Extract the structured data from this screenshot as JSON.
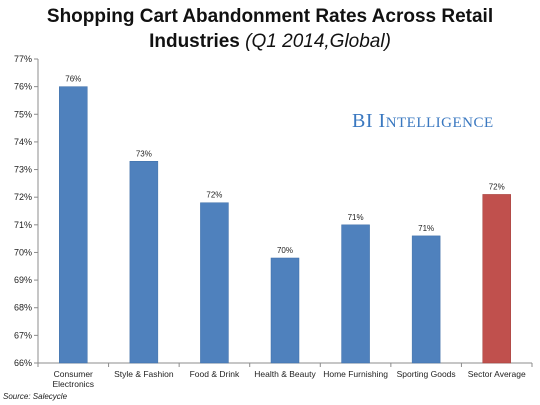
{
  "chart_data": {
    "type": "bar",
    "title": "Shopping Cart Abandonment Rates Across Retail Industries",
    "title_line1": "Shopping Cart Abandonment Rates Across Retail",
    "title_line2": "Industries",
    "subtitle": "(Q1 2014,Global)",
    "categories": [
      "Consumer Electronics",
      "Style & Fashion",
      "Food & Drink",
      "Health & Beauty",
      "Home Furnishing",
      "Sporting Goods",
      "Sector Average"
    ],
    "category_lines": [
      [
        "Consumer",
        "Electronics"
      ],
      [
        "Style & Fashion"
      ],
      [
        "Food & Drink"
      ],
      [
        "Health & Beauty"
      ],
      [
        "Home Furnishing"
      ],
      [
        "Sporting Goods"
      ],
      [
        "Sector Average"
      ]
    ],
    "values": [
      76.0,
      73.3,
      71.8,
      69.8,
      71.0,
      70.6,
      72.1
    ],
    "data_labels": [
      "76%",
      "73%",
      "72%",
      "70%",
      "71%",
      "71%",
      "72%"
    ],
    "colors": [
      "#4f81bd",
      "#4f81bd",
      "#4f81bd",
      "#4f81bd",
      "#4f81bd",
      "#4f81bd",
      "#c0504d"
    ],
    "ylim": [
      66,
      77
    ],
    "yticks": [
      66,
      67,
      68,
      69,
      70,
      71,
      72,
      73,
      74,
      75,
      76,
      77
    ],
    "ytick_labels": [
      "66%",
      "67%",
      "68%",
      "69%",
      "70%",
      "71%",
      "72%",
      "73%",
      "74%",
      "75%",
      "76%",
      "77%"
    ],
    "xlabel": "",
    "ylabel": "",
    "grid": false,
    "legend": "none"
  },
  "source": "Source: Salecycle",
  "watermark": {
    "first": "B",
    "first_rest": "I",
    "second": "I",
    "second_rest": "NTELLIGENCE"
  }
}
